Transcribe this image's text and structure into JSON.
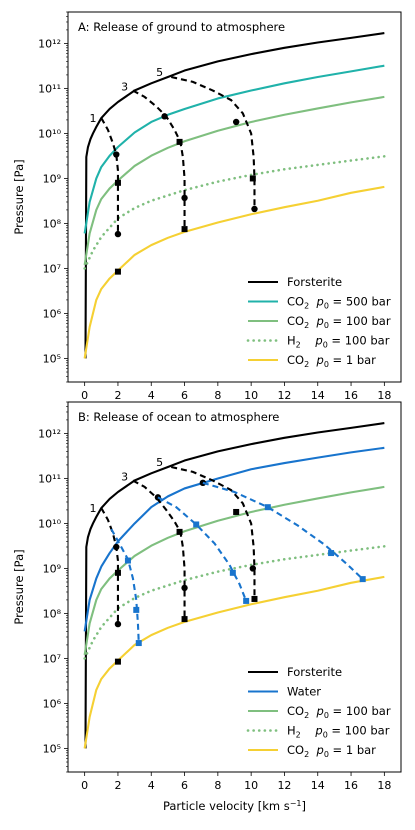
{
  "chart_data": [
    {
      "type": "line",
      "title": "A: Release of ground to atmosphere",
      "xlabel": "",
      "ylabel": "Pressure [Pa]",
      "xlim": [
        -1,
        19
      ],
      "ylim": [
        30000.0,
        5000000000000.0
      ],
      "yscale": "log",
      "xticks": [
        0,
        2,
        4,
        6,
        8,
        10,
        12,
        14,
        16,
        18
      ],
      "ytick_labels": [
        "10⁵",
        "10⁶",
        "10⁷",
        "10⁸",
        "10⁹",
        "10¹⁰",
        "10¹¹",
        "10¹²"
      ],
      "legend_position": "lower-right",
      "series": [
        {
          "name": "Forsterite",
          "color": "#000000",
          "style": "solid",
          "x": [
            0.05,
            0.1,
            0.2,
            0.35,
            0.5,
            0.7,
            1,
            1.5,
            2,
            3,
            4,
            5,
            6,
            8,
            10,
            12,
            14,
            16,
            18
          ],
          "y": [
            100000.0,
            3000000000.0,
            5000000000.0,
            7500000000.0,
            10000000000.0,
            14000000000.0,
            22000000000.0,
            35000000000.0,
            50000000000.0,
            90000000000.0,
            130000000000.0,
            180000000000.0,
            250000000000.0,
            400000000000.0,
            580000000000.0,
            800000000000.0,
            1050000000000.0,
            1330000000000.0,
            1700000000000.0
          ]
        },
        {
          "name": "CO$_2$  $p_0 = 500$ bar",
          "color": "#20b2aa",
          "style": "solid",
          "x": [
            0,
            0.3,
            0.7,
            1,
            1.5,
            2,
            3,
            4,
            5,
            6,
            8,
            10,
            12,
            14,
            16,
            18
          ],
          "y": [
            60000000.0,
            300000000.0,
            1000000000.0,
            1800000000.0,
            3200000000.0,
            5000000000.0,
            10500000000.0,
            18000000000.0,
            26000000000.0,
            35000000000.0,
            60000000000.0,
            90000000000.0,
            130000000000.0,
            180000000000.0,
            240000000000.0,
            320000000000.0
          ]
        },
        {
          "name": "CO$_2$  $p_0 = 100$ bar",
          "color": "#7fbf7f",
          "style": "solid",
          "x": [
            0,
            0.3,
            0.7,
            1,
            1.5,
            2,
            3,
            4,
            5,
            6,
            8,
            10,
            12,
            14,
            16,
            18
          ],
          "y": [
            12000000.0,
            60000000.0,
            200000000.0,
            350000000.0,
            600000000.0,
            900000000.0,
            1900000000.0,
            3200000000.0,
            4800000000.0,
            6700000000.0,
            11500000000.0,
            18000000000.0,
            26000000000.0,
            36000000000.0,
            49000000000.0,
            65000000000.0
          ]
        },
        {
          "name": "H$_2$    $p_0 = 100$ bar",
          "color": "#7fbf7f",
          "style": "dotted",
          "x": [
            0,
            0.5,
            1,
            2,
            3,
            4,
            6,
            8,
            10,
            12,
            14,
            16,
            18
          ],
          "y": [
            10000000.0,
            25000000.0,
            50000000.0,
            130000000.0,
            220000000.0,
            320000000.0,
            550000000.0,
            850000000.0,
            1200000000.0,
            1600000000.0,
            2000000000.0,
            2500000000.0,
            3100000000.0
          ]
        },
        {
          "name": "CO$_2$  $p_0 = 1$ bar",
          "color": "#f5d033",
          "style": "solid",
          "x": [
            0,
            0.3,
            0.7,
            1,
            1.5,
            2,
            3,
            4,
            5,
            6,
            8,
            10,
            12,
            14,
            16,
            18
          ],
          "y": [
            100000.0,
            500000.0,
            2000000.0,
            3500000.0,
            6000000.0,
            9000000.0,
            20000000.0,
            33000000.0,
            48000000.0,
            65000000.0,
            105000000.0,
            160000000.0,
            230000000.0,
            320000000.0,
            480000000.0,
            650000000.0
          ]
        }
      ],
      "release_paths": [
        {
          "label": "1",
          "color": "#000000",
          "x": [
            1.0,
            1.4,
            1.7,
            1.9,
            2.0,
            2.0,
            2.0,
            2.0
          ],
          "y": [
            22000000000.0,
            12000000000.0,
            6000000000.0,
            3400000000.0,
            1500000000.0,
            800000000.0,
            300000000.0,
            58000000.0
          ],
          "marker_x": [
            1.9,
            2.0,
            2.0,
            2.0
          ],
          "marker_y": [
            3400000000.0,
            800000000.0,
            58000000.0,
            8500000.0
          ]
        },
        {
          "label": "3",
          "color": "#000000",
          "x": [
            2.9,
            3.6,
            4.3,
            4.9,
            5.4,
            5.75,
            5.9,
            6.0,
            6.0,
            6.0
          ],
          "y": [
            90000000000.0,
            65000000000.0,
            40000000000.0,
            24000000000.0,
            12000000000.0,
            6500000000.0,
            3000000000.0,
            1000000000.0,
            370000000.0,
            75000000.0
          ],
          "marker_x": [
            4.8,
            5.7,
            6.0,
            6.0
          ],
          "marker_y": [
            24000000000.0,
            6500000000.0,
            370000000.0,
            75000000.0
          ]
        },
        {
          "label": "5",
          "color": "#000000",
          "x": [
            5.2,
            6.5,
            7.7,
            8.8,
            9.5,
            10.0,
            10.15,
            10.2,
            10.2
          ],
          "y": [
            180000000000.0,
            140000000000.0,
            90000000000.0,
            55000000000.0,
            28000000000.0,
            10000000000.0,
            3000000000.0,
            1000000000.0,
            210000000.0
          ],
          "marker_x": [
            9.1,
            10.1,
            10.2
          ],
          "marker_y": [
            18000000000.0,
            1000000000.0,
            210000000.0
          ]
        }
      ],
      "path_labels": [
        {
          "text": "1",
          "x": 0.5,
          "y": 22000000000.0
        },
        {
          "text": "3",
          "x": 2.4,
          "y": 110000000000.0
        },
        {
          "text": "5",
          "x": 4.5,
          "y": 230000000000.0
        }
      ]
    },
    {
      "type": "line",
      "title": "B: Release of ocean to atmosphere",
      "xlabel": "Particle velocity [km s$^{-1}$]",
      "ylabel": "Pressure [Pa]",
      "xlim": [
        -1,
        19
      ],
      "ylim": [
        30000.0,
        5000000000000.0
      ],
      "yscale": "log",
      "xticks": [
        0,
        2,
        4,
        6,
        8,
        10,
        12,
        14,
        16,
        18
      ],
      "ytick_labels": [
        "10⁵",
        "10⁶",
        "10⁷",
        "10⁸",
        "10⁹",
        "10¹⁰",
        "10¹¹",
        "10¹²"
      ],
      "legend_position": "lower-right",
      "series": [
        {
          "name": "Forsterite",
          "color": "#000000",
          "style": "solid",
          "x": [
            0.05,
            0.1,
            0.2,
            0.35,
            0.5,
            0.7,
            1,
            1.5,
            2,
            3,
            4,
            5,
            6,
            8,
            10,
            12,
            14,
            16,
            18
          ],
          "y": [
            100000.0,
            3000000000.0,
            5000000000.0,
            7500000000.0,
            10000000000.0,
            14000000000.0,
            22000000000.0,
            35000000000.0,
            50000000000.0,
            90000000000.0,
            130000000000.0,
            180000000000.0,
            250000000000.0,
            400000000000.0,
            580000000000.0,
            800000000000.0,
            1050000000000.0,
            1330000000000.0,
            1700000000000.0
          ]
        },
        {
          "name": "Water",
          "color": "#1874cd",
          "style": "solid",
          "x": [
            0,
            0.3,
            0.7,
            1,
            1.5,
            2,
            3,
            4,
            5,
            6,
            8,
            10,
            12,
            14,
            16,
            18
          ],
          "y": [
            40000000.0,
            200000000.0,
            600000000.0,
            1100000000.0,
            2200000000.0,
            4000000000.0,
            10000000000.0,
            23000000000.0,
            40000000000.0,
            60000000000.0,
            100000000000.0,
            160000000000.0,
            220000000000.0,
            290000000000.0,
            380000000000.0,
            480000000000.0
          ]
        },
        {
          "name": "CO$_2$  $p_0 = 100$ bar",
          "color": "#7fbf7f",
          "style": "solid",
          "x": [
            0,
            0.3,
            0.7,
            1,
            1.5,
            2,
            3,
            4,
            5,
            6,
            8,
            10,
            12,
            14,
            16,
            18
          ],
          "y": [
            12000000.0,
            60000000.0,
            200000000.0,
            350000000.0,
            600000000.0,
            900000000.0,
            1900000000.0,
            3200000000.0,
            4800000000.0,
            6700000000.0,
            11500000000.0,
            18000000000.0,
            26000000000.0,
            36000000000.0,
            49000000000.0,
            65000000000.0
          ]
        },
        {
          "name": "H$_2$    $p_0 = 100$ bar",
          "color": "#7fbf7f",
          "style": "dotted",
          "x": [
            0,
            0.5,
            1,
            2,
            3,
            4,
            6,
            8,
            10,
            12,
            14,
            16,
            18
          ],
          "y": [
            10000000.0,
            25000000.0,
            50000000.0,
            130000000.0,
            220000000.0,
            320000000.0,
            550000000.0,
            850000000.0,
            1200000000.0,
            1600000000.0,
            2000000000.0,
            2500000000.0,
            3100000000.0
          ]
        },
        {
          "name": "CO$_2$  $p_0 = 1$ bar",
          "color": "#f5d033",
          "style": "solid",
          "x": [
            0,
            0.3,
            0.7,
            1,
            1.5,
            2,
            3,
            4,
            5,
            6,
            8,
            10,
            12,
            14,
            16,
            18
          ],
          "y": [
            100000.0,
            500000.0,
            2000000.0,
            3500000.0,
            6000000.0,
            9000000.0,
            20000000.0,
            33000000.0,
            48000000.0,
            65000000.0,
            105000000.0,
            160000000.0,
            230000000.0,
            320000000.0,
            480000000.0,
            650000000.0
          ]
        }
      ],
      "release_paths": [
        {
          "label": "1",
          "color": "#000000",
          "x": [
            1.0,
            1.4,
            1.7,
            1.9,
            2.0,
            2.0,
            2.0,
            2.0
          ],
          "y": [
            22000000000.0,
            12000000000.0,
            6000000000.0,
            3000000000.0,
            1500000000.0,
            800000000.0,
            300000000.0,
            58000000.0
          ],
          "marker_x": [
            1.9,
            2.0,
            2.0,
            2.0
          ],
          "marker_y": [
            3000000000.0,
            800000000.0,
            58000000.0,
            8500000.0
          ]
        },
        {
          "label": "3",
          "color": "#000000",
          "x": [
            2.9,
            3.6,
            4.3,
            4.9,
            5.4,
            5.75,
            5.9,
            6.0,
            6.0,
            6.0
          ],
          "y": [
            90000000000.0,
            65000000000.0,
            38000000000.0,
            20000000000.0,
            11000000000.0,
            6500000000.0,
            3000000000.0,
            1000000000.0,
            370000000.0,
            75000000.0
          ],
          "marker_x": [
            4.4,
            5.7,
            6.0,
            6.0
          ],
          "marker_y": [
            38000000000.0,
            6500000000.0,
            370000000.0,
            75000000.0
          ]
        },
        {
          "label": "5",
          "color": "#000000",
          "x": [
            5.2,
            6.5,
            7.7,
            8.8,
            9.5,
            10.0,
            10.15,
            10.2,
            10.2
          ],
          "y": [
            180000000000.0,
            140000000000.0,
            90000000000.0,
            55000000000.0,
            28000000000.0,
            10000000000.0,
            3000000000.0,
            1000000000.0,
            210000000.0
          ],
          "marker_x": [
            7.1,
            9.1,
            10.1,
            10.2
          ],
          "marker_y": [
            80000000000.0,
            18000000000.0,
            1000000000.0,
            210000000.0
          ]
        },
        {
          "label": "water-1",
          "color": "#1874cd",
          "x": [
            1.6,
            2.1,
            2.6,
            2.9,
            3.1,
            3.2,
            3.25
          ],
          "y": [
            7500000000.0,
            3500000000.0,
            1600000000.0,
            600000000.0,
            200000000.0,
            60000000.0,
            22000000.0
          ],
          "marker_x": [
            2.6,
            3.1,
            3.25
          ],
          "marker_y": [
            1500000000.0,
            120000000.0,
            22000000.0
          ]
        },
        {
          "label": "water-3",
          "color": "#1874cd",
          "x": [
            4.4,
            5.5,
            6.7,
            7.8,
            8.7,
            9.3,
            9.7
          ],
          "y": [
            38000000000.0,
            23000000000.0,
            9500000000.0,
            3600000000.0,
            1200000000.0,
            450000000.0,
            190000000.0
          ],
          "marker_x": [
            6.7,
            8.9,
            9.7
          ],
          "marker_y": [
            9500000000.0,
            800000000.0,
            190000000.0
          ]
        },
        {
          "label": "water-5",
          "color": "#1874cd",
          "x": [
            7.1,
            9.0,
            11.0,
            12.8,
            14.4,
            15.7,
            16.7
          ],
          "y": [
            80000000000.0,
            50000000000.0,
            23000000000.0,
            9000000000.0,
            3400000000.0,
            1300000000.0,
            580000000.0
          ],
          "marker_x": [
            11.0,
            14.8,
            16.7
          ],
          "marker_y": [
            23000000000.0,
            2200000000.0,
            580000000.0
          ]
        }
      ],
      "path_labels": [
        {
          "text": "1",
          "x": 0.5,
          "y": 22000000000.0
        },
        {
          "text": "3",
          "x": 2.4,
          "y": 110000000000.0
        },
        {
          "text": "5",
          "x": 4.5,
          "y": 230000000000.0
        }
      ]
    }
  ]
}
